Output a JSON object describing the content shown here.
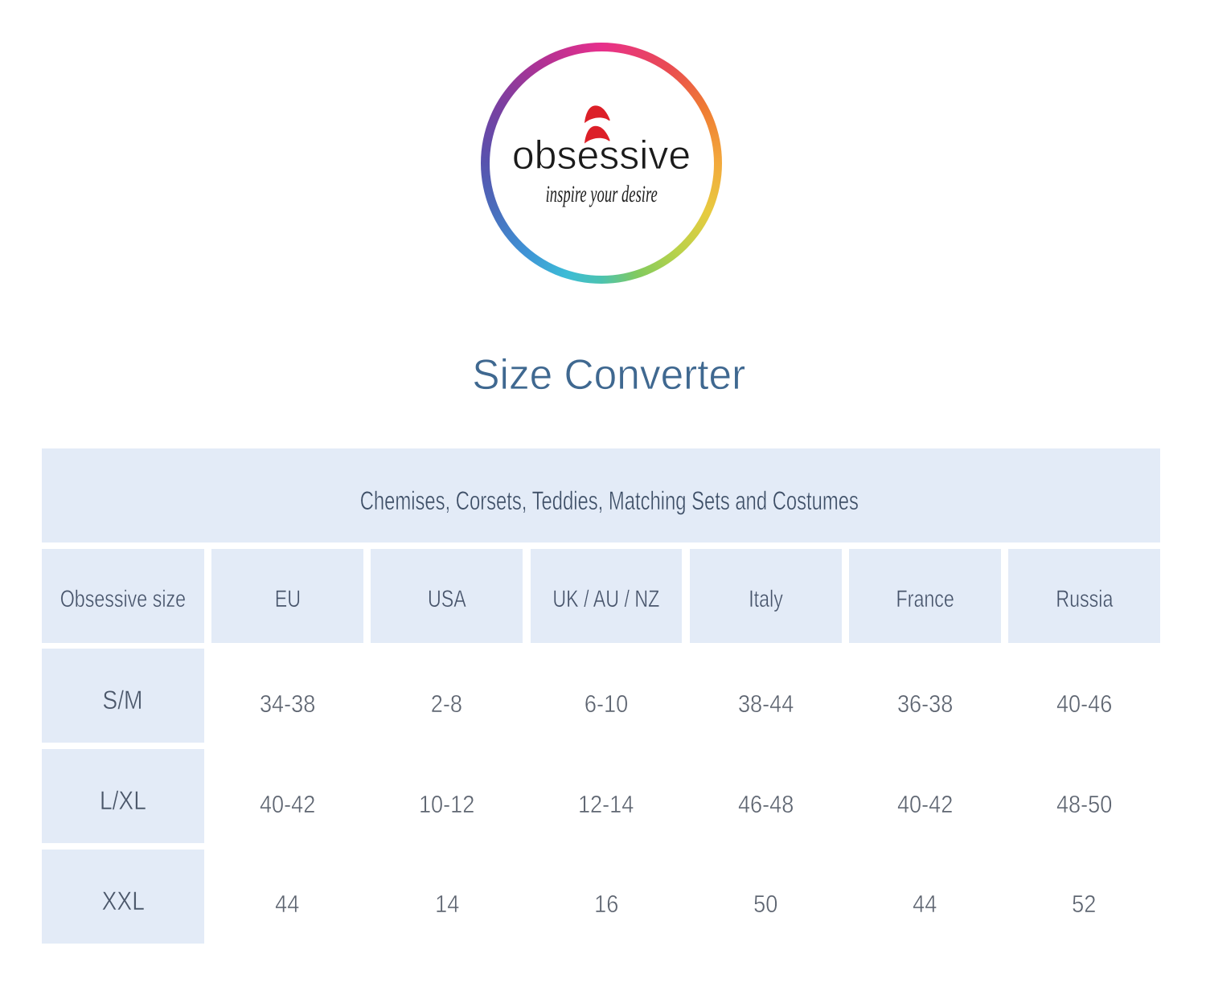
{
  "logo": {
    "brand": "obsessive",
    "tagline": "inspire your desire",
    "flame_color": "#dc1f28",
    "ring_colors": [
      "#e7308c",
      "#ef7b33",
      "#f2a93c",
      "#e7cb40",
      "#82ca5e",
      "#4cc3b0",
      "#3cbcd6",
      "#3f93d6",
      "#4a6cbb",
      "#5851ad",
      "#7b3fa0",
      "#b53193"
    ]
  },
  "heading": {
    "title": "Size Converter",
    "color": "#3f6890"
  },
  "table": {
    "group_header": "Chemises, Corsets, Teddies, Matching Sets and Costumes",
    "columns": [
      "Obsessive size",
      "EU",
      "USA",
      "UK / AU / NZ",
      "Italy",
      "France",
      "Russia"
    ],
    "rows": [
      {
        "label": "S/M",
        "values": [
          "34-38",
          "2-8",
          "6-10",
          "38-44",
          "36-38",
          "40-46"
        ]
      },
      {
        "label": "L/XL",
        "values": [
          "40-42",
          "10-12",
          "12-14",
          "46-48",
          "40-42",
          "48-50"
        ]
      },
      {
        "label": "XXL",
        "values": [
          "44",
          "14",
          "16",
          "50",
          "44",
          "52"
        ]
      }
    ],
    "cell_bg": "#e3ebf7"
  }
}
